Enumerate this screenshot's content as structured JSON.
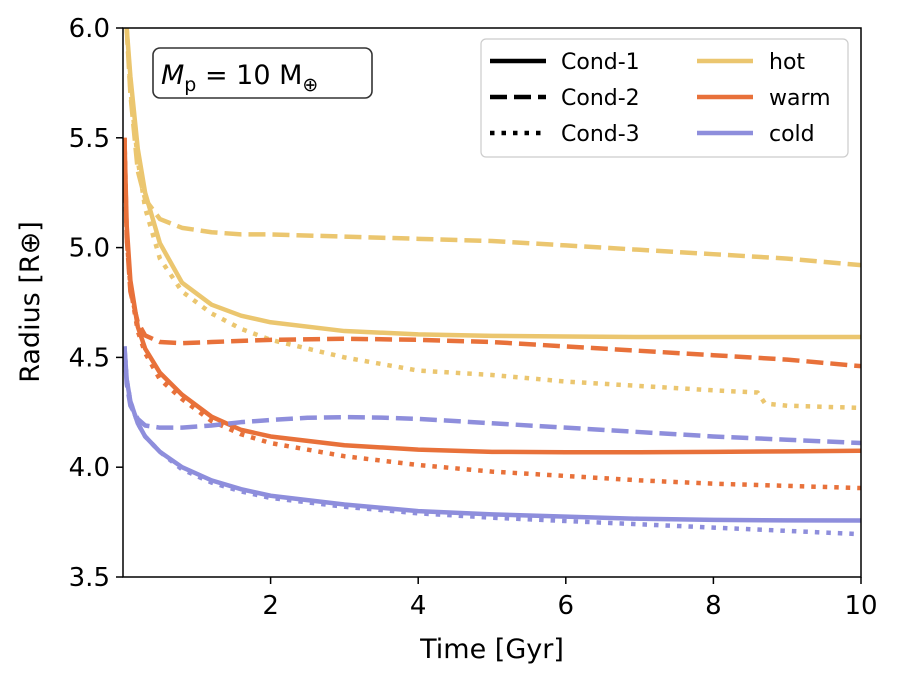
{
  "chart_data": {
    "type": "line",
    "xlabel": "Time [Gyr]",
    "ylabel": "Radius [R⊕]",
    "xlim": [
      0,
      10
    ],
    "ylim": [
      3.5,
      6.0
    ],
    "xticks": [
      2,
      4,
      6,
      8,
      10
    ],
    "yticks": [
      3.5,
      4.0,
      4.5,
      5.0,
      5.5,
      6.0
    ],
    "xtick_labels": [
      "2",
      "4",
      "6",
      "8",
      "10"
    ],
    "ytick_labels": [
      "3.5",
      "4.0",
      "4.5",
      "5.0",
      "5.5",
      "6.0"
    ],
    "grid": false,
    "annotation": {
      "symbol": "M",
      "subscript": "p",
      "rest": " = 10 M",
      "unit_symbol": "⊕"
    },
    "legend": {
      "placement": "top-right",
      "styles": [
        {
          "label": "Cond-1",
          "dash": "solid"
        },
        {
          "label": "Cond-2",
          "dash": "dashed"
        },
        {
          "label": "Cond-3",
          "dash": "dotted"
        }
      ],
      "colors": [
        {
          "label": "hot",
          "color": "#EBC66F"
        },
        {
          "label": "warm",
          "color": "#E8713A"
        },
        {
          "label": "cold",
          "color": "#8E8EDC"
        }
      ]
    },
    "series": [
      {
        "name": "hot Cond-1",
        "color": "#EBC66F",
        "dash": "solid",
        "x": [
          0.05,
          0.1,
          0.2,
          0.3,
          0.5,
          0.8,
          1.2,
          1.6,
          2,
          3,
          4,
          5,
          6,
          7,
          8,
          9,
          10
        ],
        "y": [
          6.0,
          5.78,
          5.45,
          5.25,
          5.02,
          4.84,
          4.74,
          4.69,
          4.66,
          4.62,
          4.605,
          4.598,
          4.595,
          4.593,
          4.593,
          4.593,
          4.593
        ]
      },
      {
        "name": "hot Cond-2",
        "color": "#EBC66F",
        "dash": "dashed",
        "x": [
          0.05,
          0.1,
          0.2,
          0.3,
          0.5,
          0.8,
          1.2,
          1.6,
          2,
          3,
          4,
          5,
          6,
          7,
          8,
          9,
          10
        ],
        "y": [
          6.0,
          5.7,
          5.35,
          5.22,
          5.13,
          5.09,
          5.07,
          5.06,
          5.06,
          5.05,
          5.04,
          5.03,
          5.01,
          4.99,
          4.97,
          4.95,
          4.92
        ]
      },
      {
        "name": "hot Cond-3",
        "color": "#EBC66F",
        "dash": "dotted",
        "x": [
          0.05,
          0.1,
          0.2,
          0.3,
          0.5,
          0.8,
          1.2,
          1.6,
          2,
          3,
          4,
          5,
          6,
          7,
          8,
          8.6,
          8.7,
          9,
          10
        ],
        "y": [
          6.0,
          5.72,
          5.4,
          5.18,
          4.95,
          4.8,
          4.7,
          4.63,
          4.58,
          4.5,
          4.44,
          4.42,
          4.39,
          4.37,
          4.35,
          4.34,
          4.29,
          4.28,
          4.27
        ]
      },
      {
        "name": "warm Cond-1",
        "color": "#E8713A",
        "dash": "solid",
        "x": [
          0.02,
          0.05,
          0.1,
          0.2,
          0.3,
          0.5,
          0.8,
          1.2,
          1.6,
          2,
          3,
          4,
          5,
          6,
          7,
          8,
          9,
          10
        ],
        "y": [
          5.5,
          5.1,
          4.85,
          4.64,
          4.54,
          4.43,
          4.33,
          4.23,
          4.17,
          4.14,
          4.1,
          4.08,
          4.07,
          4.068,
          4.068,
          4.07,
          4.072,
          4.075
        ]
      },
      {
        "name": "warm Cond-2",
        "color": "#E8713A",
        "dash": "dashed",
        "x": [
          0.02,
          0.05,
          0.1,
          0.2,
          0.3,
          0.5,
          0.8,
          1.2,
          1.6,
          2,
          3,
          4,
          5,
          6,
          7,
          8,
          9,
          10
        ],
        "y": [
          5.5,
          5.05,
          4.8,
          4.66,
          4.6,
          4.57,
          4.565,
          4.57,
          4.575,
          4.58,
          4.585,
          4.58,
          4.57,
          4.55,
          4.53,
          4.51,
          4.49,
          4.46
        ]
      },
      {
        "name": "warm Cond-3",
        "color": "#E8713A",
        "dash": "dotted",
        "x": [
          0.02,
          0.05,
          0.1,
          0.2,
          0.3,
          0.5,
          0.8,
          1.2,
          1.6,
          2,
          3,
          4,
          5,
          6,
          7,
          8,
          9,
          10
        ],
        "y": [
          5.5,
          5.05,
          4.82,
          4.62,
          4.52,
          4.4,
          4.31,
          4.21,
          4.15,
          4.11,
          4.05,
          4.01,
          3.98,
          3.96,
          3.94,
          3.925,
          3.915,
          3.905
        ]
      },
      {
        "name": "cold Cond-1",
        "color": "#8E8EDC",
        "dash": "solid",
        "x": [
          0.02,
          0.05,
          0.1,
          0.2,
          0.3,
          0.5,
          0.8,
          1.2,
          1.6,
          2,
          3,
          4,
          5,
          6,
          7,
          8,
          9,
          10
        ],
        "y": [
          4.55,
          4.4,
          4.3,
          4.2,
          4.14,
          4.07,
          4.0,
          3.94,
          3.9,
          3.87,
          3.83,
          3.8,
          3.785,
          3.775,
          3.765,
          3.76,
          3.758,
          3.757
        ]
      },
      {
        "name": "cold Cond-2",
        "color": "#8E8EDC",
        "dash": "dashed",
        "x": [
          0.02,
          0.05,
          0.1,
          0.2,
          0.3,
          0.5,
          0.8,
          1.2,
          1.6,
          2,
          2.5,
          3,
          3.5,
          4,
          5,
          6,
          7,
          8,
          9,
          10
        ],
        "y": [
          4.55,
          4.38,
          4.28,
          4.22,
          4.19,
          4.18,
          4.18,
          4.19,
          4.205,
          4.215,
          4.225,
          4.228,
          4.226,
          4.22,
          4.2,
          4.18,
          4.16,
          4.14,
          4.125,
          4.11
        ]
      },
      {
        "name": "cold Cond-3",
        "color": "#8E8EDC",
        "dash": "dotted",
        "x": [
          0.02,
          0.05,
          0.1,
          0.2,
          0.3,
          0.5,
          0.8,
          1.2,
          1.6,
          2,
          3,
          4,
          5,
          6,
          7,
          8,
          9,
          10
        ],
        "y": [
          4.55,
          4.4,
          4.3,
          4.2,
          4.14,
          4.07,
          3.99,
          3.93,
          3.89,
          3.86,
          3.82,
          3.79,
          3.77,
          3.755,
          3.74,
          3.725,
          3.71,
          3.695
        ]
      }
    ]
  }
}
